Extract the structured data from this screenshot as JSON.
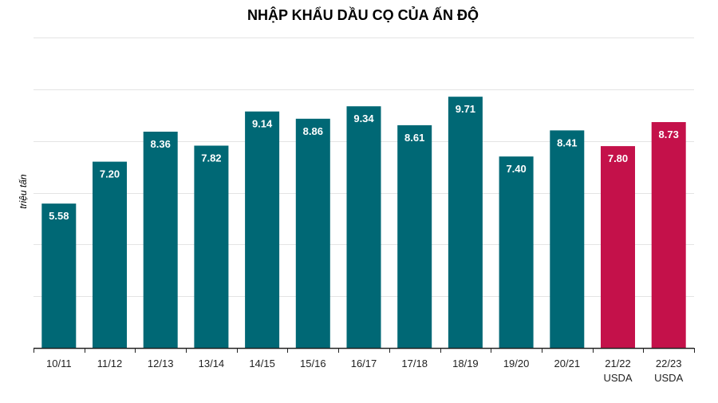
{
  "chart_data": {
    "type": "bar",
    "title": "NHẬP KHẨU DẦU CỌ CỦA ẤN ĐỘ",
    "ylabel": "triệu tấn",
    "xlabel": "",
    "categories": [
      "10/11",
      "11/12",
      "12/13",
      "13/14",
      "14/15",
      "15/16",
      "16/17",
      "17/18",
      "18/19",
      "19/20",
      "20/21",
      "21/22",
      "22/23"
    ],
    "category_sublabels": [
      "",
      "",
      "",
      "",
      "",
      "",
      "",
      "",
      "",
      "",
      "",
      "USDA",
      "USDA"
    ],
    "values": [
      5.58,
      7.2,
      8.36,
      7.82,
      9.14,
      8.86,
      9.34,
      8.61,
      9.71,
      7.4,
      8.41,
      7.8,
      8.73
    ],
    "value_labels": [
      "5.58",
      "7.20",
      "8.36",
      "7.82",
      "9.14",
      "8.86",
      "9.34",
      "8.61",
      "9.71",
      "7.40",
      "8.41",
      "7.80",
      "8.73"
    ],
    "forecast": [
      false,
      false,
      false,
      false,
      false,
      false,
      false,
      false,
      false,
      false,
      false,
      true,
      true
    ],
    "ylim": [
      0,
      12
    ],
    "y_gridlines": [
      0,
      2,
      4,
      6,
      8,
      10,
      12
    ],
    "grid": true,
    "colors": {
      "actual": "#006875",
      "forecast": "#c4114a",
      "label": "#ffffff",
      "grid": "#e4e4e4",
      "axis": "#222222",
      "text": "#222222"
    }
  }
}
